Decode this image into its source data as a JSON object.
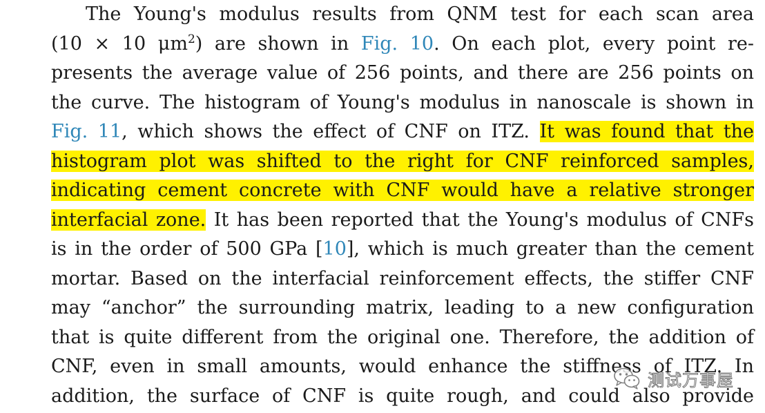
{
  "paragraph": {
    "l1": "The Young's modulus results from QNM test for each scan area",
    "l2a": "(10 × 10 μm",
    "l2sup": "2",
    "l2b": ") are shown in ",
    "l2link": "Fig. 10",
    "l2c": ". On each plot, every point re-",
    "l3": "presents the average value of 256 points, and there are 256 points on",
    "l4": "the curve. The histogram of Young's modulus in nanoscale is shown in",
    "l5link": "Fig. 11",
    "l5a": ", which shows the effect of CNF on ITZ. ",
    "l5hl": "It was found that the",
    "l6hl": "histogram plot was shifted to the right for CNF reinforced samples,",
    "l7hl": "indicating cement concrete with CNF would have a relative stronger",
    "l8hl": "interfacial zone.",
    "l8a": " It has been reported that the Young's modulus of CNFs",
    "l9a": "is in the order of 500 GPa [",
    "l9link": "10",
    "l9b": "], which is much greater than the cement",
    "l10": "mortar. Based on the interfacial reinforcement effects, the stiffer CNF",
    "l11": "may “anchor” the surrounding matrix, leading to a new configuration",
    "l12": "that is quite different from the original one. Therefore, the addition of",
    "l13": "CNF, even in small amounts, would enhance the stiffness of ITZ. In",
    "l14": "addition, the surface of CNF is quite rough, and could also provide"
  },
  "colors": {
    "link": "#2f87b8",
    "highlight": "#fff100",
    "text": "#1a1a1a"
  },
  "watermark": {
    "icon": "wechat-icon",
    "text": "测试万事屋"
  }
}
